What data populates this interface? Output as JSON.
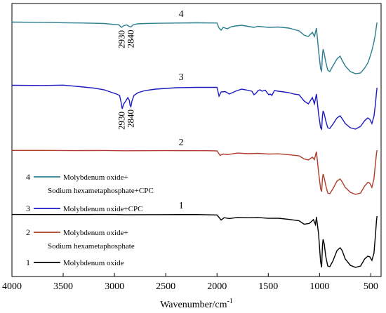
{
  "chart_data": {
    "type": "line",
    "title": "",
    "xlabel": "Wavenumber/cm",
    "xlabel_sup": "-1",
    "ylabel": "",
    "xlim": [
      4000,
      400
    ],
    "x_reversed": true,
    "x_ticks": [
      4000,
      3500,
      3000,
      2500,
      2000,
      1500,
      1000,
      500
    ],
    "y_ticks_shown": false,
    "grid": false,
    "legend_position": "left-bottom",
    "series": [
      {
        "name": "Molybdenum oxide",
        "number": "1",
        "color": "#000000",
        "baseline": 4,
        "points": [
          [
            4000,
            -0.6
          ],
          [
            3700,
            -0.7
          ],
          [
            3400,
            -0.7
          ],
          [
            3200,
            -0.55
          ],
          [
            3000,
            -0.6
          ],
          [
            2900,
            -0.9
          ],
          [
            2500,
            -0.75
          ],
          [
            2200,
            -0.7
          ],
          [
            2000,
            -1.3
          ],
          [
            1960,
            -8.5
          ],
          [
            1930,
            -5.2
          ],
          [
            1880,
            -6.4
          ],
          [
            1800,
            -4.8
          ],
          [
            1700,
            -5.2
          ],
          [
            1600,
            -4.9
          ],
          [
            1500,
            -6.1
          ],
          [
            1400,
            -6.0
          ],
          [
            1300,
            -7.6
          ],
          [
            1200,
            -9.5
          ],
          [
            1150,
            -14.5
          ],
          [
            1100,
            -13.4
          ],
          [
            1060,
            -8.0
          ],
          [
            1040,
            -15.0
          ],
          [
            1030,
            -4.2
          ],
          [
            1010,
            -28.0
          ],
          [
            990,
            -68.0
          ],
          [
            980,
            -76.0
          ],
          [
            972,
            -46.0
          ],
          [
            965,
            -36.0
          ],
          [
            955,
            -42.0
          ],
          [
            940,
            -60.0
          ],
          [
            920,
            -74.0
          ],
          [
            900,
            -75.0
          ],
          [
            870,
            -67.0
          ],
          [
            830,
            -52.0
          ],
          [
            800,
            -48.0
          ],
          [
            780,
            -52.0
          ],
          [
            750,
            -64.0
          ],
          [
            700,
            -73.0
          ],
          [
            650,
            -76.0
          ],
          [
            600,
            -74.0
          ],
          [
            560,
            -64.0
          ],
          [
            530,
            -60.0
          ],
          [
            510,
            -61.0
          ],
          [
            490,
            -66.0
          ],
          [
            470,
            -56.0
          ],
          [
            455,
            -30.0
          ],
          [
            445,
            -10.0
          ],
          [
            440,
            -3.0
          ]
        ]
      },
      {
        "name": "Molybdenum oxide+ Sodium hexametaphosphate",
        "number": "2",
        "color": "#b13c2b",
        "baseline": 3,
        "points": [
          [
            4000,
            0.7
          ],
          [
            3700,
            0.7
          ],
          [
            3400,
            0.4
          ],
          [
            3100,
            0.6
          ],
          [
            2900,
            0.2
          ],
          [
            2500,
            0.4
          ],
          [
            2100,
            0.3
          ],
          [
            2000,
            0.0
          ],
          [
            1970,
            -6.5
          ],
          [
            1940,
            -4.5
          ],
          [
            1900,
            -5.3
          ],
          [
            1850,
            -4.2
          ],
          [
            1800,
            -3.1
          ],
          [
            1700,
            -4.0
          ],
          [
            1600,
            -3.5
          ],
          [
            1500,
            -4.5
          ],
          [
            1400,
            -4.2
          ],
          [
            1300,
            -5.4
          ],
          [
            1200,
            -7.0
          ],
          [
            1150,
            -11.5
          ],
          [
            1110,
            -13.0
          ],
          [
            1070,
            -9.0
          ],
          [
            1050,
            -12.5
          ],
          [
            1030,
            -1.0
          ],
          [
            1010,
            -30.0
          ],
          [
            990,
            -54.0
          ],
          [
            980,
            -58.0
          ],
          [
            972,
            -40.0
          ],
          [
            965,
            -33.0
          ],
          [
            955,
            -38.0
          ],
          [
            940,
            -49.0
          ],
          [
            920,
            -60.0
          ],
          [
            900,
            -61.0
          ],
          [
            870,
            -54.0
          ],
          [
            830,
            -43.0
          ],
          [
            800,
            -40.0
          ],
          [
            780,
            -44.0
          ],
          [
            750,
            -52.0
          ],
          [
            700,
            -59.0
          ],
          [
            650,
            -62.0
          ],
          [
            600,
            -60.0
          ],
          [
            560,
            -50.0
          ],
          [
            530,
            -45.0
          ],
          [
            510,
            -46.0
          ],
          [
            490,
            -52.0
          ],
          [
            470,
            -40.0
          ],
          [
            455,
            -18.0
          ],
          [
            445,
            -4.0
          ],
          [
            440,
            1.0
          ]
        ]
      },
      {
        "name": "Molybdenum oxide+CPC",
        "number": "3",
        "color": "#1c19c2",
        "baseline": 2,
        "points": [
          [
            4000,
            0.5
          ],
          [
            3700,
            0.2
          ],
          [
            3500,
            0.7
          ],
          [
            3300,
            -2.0
          ],
          [
            3200,
            -3.5
          ],
          [
            3100,
            -6.0
          ],
          [
            3020,
            -10.0
          ],
          [
            2980,
            -12.0
          ],
          [
            2950,
            -14.0
          ],
          [
            2935,
            -24.0
          ],
          [
            2925,
            -33.0
          ],
          [
            2910,
            -26.0
          ],
          [
            2890,
            -22.0
          ],
          [
            2870,
            -17.0
          ],
          [
            2855,
            -21.0
          ],
          [
            2848,
            -28.0
          ],
          [
            2840,
            -30.0
          ],
          [
            2830,
            -22.0
          ],
          [
            2810,
            -14.0
          ],
          [
            2770,
            -10.0
          ],
          [
            2700,
            -7.0
          ],
          [
            2600,
            -5.0
          ],
          [
            2400,
            -3.0
          ],
          [
            2200,
            -2.5
          ],
          [
            2000,
            -2.5
          ],
          [
            1980,
            -15.0
          ],
          [
            1960,
            -9.0
          ],
          [
            1920,
            -8.5
          ],
          [
            1880,
            -12.0
          ],
          [
            1820,
            -8.0
          ],
          [
            1760,
            -5.0
          ],
          [
            1720,
            -6.0
          ],
          [
            1660,
            -8.0
          ],
          [
            1640,
            -13.0
          ],
          [
            1620,
            -11.0
          ],
          [
            1600,
            -7.0
          ],
          [
            1580,
            -6.0
          ],
          [
            1560,
            -8.0
          ],
          [
            1530,
            -6.5
          ],
          [
            1495,
            -13.0
          ],
          [
            1480,
            -12.0
          ],
          [
            1465,
            -14.0
          ],
          [
            1440,
            -7.0
          ],
          [
            1400,
            -8.0
          ],
          [
            1350,
            -9.0
          ],
          [
            1300,
            -10.0
          ],
          [
            1250,
            -12.0
          ],
          [
            1200,
            -13.0
          ],
          [
            1150,
            -22.0
          ],
          [
            1110,
            -26.0
          ],
          [
            1070,
            -17.0
          ],
          [
            1050,
            -26.0
          ],
          [
            1030,
            -12.0
          ],
          [
            1010,
            -40.0
          ],
          [
            990,
            -60.0
          ],
          [
            980,
            -62.0
          ],
          [
            972,
            -44.0
          ],
          [
            965,
            -36.0
          ],
          [
            955,
            -40.0
          ],
          [
            940,
            -50.0
          ],
          [
            920,
            -60.0
          ],
          [
            900,
            -61.0
          ],
          [
            870,
            -55.0
          ],
          [
            830,
            -46.0
          ],
          [
            800,
            -43.0
          ],
          [
            780,
            -47.0
          ],
          [
            750,
            -54.0
          ],
          [
            700,
            -60.0
          ],
          [
            650,
            -62.0
          ],
          [
            600,
            -58.0
          ],
          [
            560,
            -50.0
          ],
          [
            530,
            -46.0
          ],
          [
            510,
            -48.0
          ],
          [
            490,
            -54.0
          ],
          [
            470,
            -44.0
          ],
          [
            455,
            -26.0
          ],
          [
            445,
            -10.0
          ],
          [
            440,
            -3.0
          ]
        ]
      },
      {
        "name": "Molybdenum oxide+ Sodium hexametaphosphate+CPC",
        "number": "4",
        "color": "#2b7f8d",
        "baseline": 1,
        "points": [
          [
            4000,
            0.5
          ],
          [
            3700,
            0.2
          ],
          [
            3500,
            -0.4
          ],
          [
            3300,
            -0.8
          ],
          [
            3100,
            -1.5
          ],
          [
            3000,
            -2.8
          ],
          [
            2960,
            -3.2
          ],
          [
            2930,
            -7.0
          ],
          [
            2910,
            -4.5
          ],
          [
            2880,
            -3.5
          ],
          [
            2860,
            -5.5
          ],
          [
            2840,
            -6.5
          ],
          [
            2820,
            -3.5
          ],
          [
            2780,
            -2.0
          ],
          [
            2700,
            -1.5
          ],
          [
            2600,
            -1.2
          ],
          [
            2400,
            -0.8
          ],
          [
            2200,
            -0.5
          ],
          [
            2000,
            -0.8
          ],
          [
            1980,
            -8.0
          ],
          [
            1960,
            -11.0
          ],
          [
            1940,
            -7.0
          ],
          [
            1900,
            -9.0
          ],
          [
            1860,
            -6.0
          ],
          [
            1820,
            -5.0
          ],
          [
            1760,
            -4.0
          ],
          [
            1700,
            -5.5
          ],
          [
            1640,
            -7.0
          ],
          [
            1600,
            -5.5
          ],
          [
            1500,
            -7.0
          ],
          [
            1400,
            -6.5
          ],
          [
            1300,
            -8.0
          ],
          [
            1200,
            -12.0
          ],
          [
            1150,
            -18.0
          ],
          [
            1110,
            -20.0
          ],
          [
            1070,
            -14.0
          ],
          [
            1050,
            -20.0
          ],
          [
            1030,
            -8.0
          ],
          [
            1010,
            -40.0
          ],
          [
            990,
            -66.0
          ],
          [
            980,
            -69.0
          ],
          [
            972,
            -47.0
          ],
          [
            965,
            -38.0
          ],
          [
            955,
            -44.0
          ],
          [
            940,
            -56.0
          ],
          [
            920,
            -68.0
          ],
          [
            900,
            -70.0
          ],
          [
            870,
            -62.0
          ],
          [
            830,
            -52.0
          ],
          [
            800,
            -48.0
          ],
          [
            780,
            -54.0
          ],
          [
            750,
            -62.0
          ],
          [
            700,
            -70.0
          ],
          [
            650,
            -73.0
          ],
          [
            600,
            -72.0
          ],
          [
            560,
            -65.0
          ],
          [
            530,
            -58.0
          ],
          [
            510,
            -50.0
          ],
          [
            490,
            -40.0
          ],
          [
            470,
            -28.0
          ],
          [
            455,
            -16.0
          ],
          [
            445,
            -5.0
          ],
          [
            440,
            0.0
          ]
        ]
      }
    ],
    "annotations": [
      {
        "text": "2930",
        "x": 2930,
        "series": 4,
        "rotation": -90
      },
      {
        "text": "2840",
        "x": 2840,
        "series": 4,
        "rotation": -90
      },
      {
        "text": "2930",
        "x": 2930,
        "series": 3,
        "rotation": -90
      },
      {
        "text": "2840",
        "x": 2840,
        "series": 3,
        "rotation": -90
      }
    ],
    "legend": [
      {
        "number": "4",
        "lines": [
          "Molybdenum oxide+",
          "Sodium hexametaphosphate+CPC"
        ],
        "series": 4
      },
      {
        "number": "3",
        "lines": [
          "Molybdenum oxide+CPC"
        ],
        "series": 3
      },
      {
        "number": "2",
        "lines": [
          "Molybdenum oxide+",
          "Sodium hexametaphosphate"
        ],
        "series": 2
      },
      {
        "number": "1",
        "lines": [
          "Molybdenum oxide"
        ],
        "series": 1
      }
    ]
  }
}
